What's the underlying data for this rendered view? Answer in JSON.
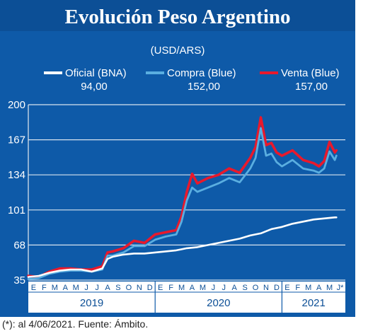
{
  "chart_data": {
    "type": "line",
    "title": "Evolución Peso Argentino",
    "subtitle": "(USD/ARS)",
    "footnote": "(*): al 4/06/2021. Fuente: Ámbito.",
    "ylim": [
      35,
      200
    ],
    "y_ticks": [
      35,
      68,
      101,
      134,
      167,
      200
    ],
    "y_tick_labels": [
      "35",
      "68",
      "101",
      "134",
      "167",
      "200"
    ],
    "month_labels": [
      "E",
      "F",
      "M",
      "A",
      "M",
      "J",
      "J",
      "A",
      "S",
      "O",
      "N",
      "D",
      "E",
      "F",
      "M",
      "A",
      "M",
      "J",
      "J",
      "A",
      "S",
      "O",
      "N",
      "D",
      "E",
      "F",
      "M",
      "A",
      "M",
      "J*"
    ],
    "years": [
      {
        "label": "2019",
        "start_month": 0,
        "end_month": 12
      },
      {
        "label": "2020",
        "start_month": 12,
        "end_month": 24
      },
      {
        "label": "2021",
        "start_month": 24,
        "end_month": 30
      }
    ],
    "grid": true,
    "legend_position": "top",
    "x_unit": "months since January 2019",
    "series": [
      {
        "name": "Oficial (BNA)",
        "last_value": "94,00",
        "color": "#ffffff",
        "x": [
          0,
          1,
          2,
          3,
          4,
          5,
          6,
          7,
          7.5,
          8,
          9,
          10,
          11,
          12,
          13,
          14,
          15,
          16,
          17,
          18,
          19,
          20,
          21,
          22,
          23,
          24,
          25,
          26,
          27,
          28,
          29,
          29.15
        ],
        "y": [
          38,
          39,
          42,
          44,
          45,
          45,
          43,
          46,
          55,
          57,
          59,
          60,
          60,
          61,
          62,
          63,
          65,
          66,
          68,
          70,
          72,
          74,
          77,
          79,
          83,
          85,
          88,
          90,
          92,
          93,
          94,
          94
        ]
      },
      {
        "name": "Compra (Blue)",
        "last_value": "152,00",
        "color": "#5aaee0",
        "x": [
          0,
          1,
          2,
          3,
          4,
          5,
          6,
          7,
          7.5,
          8,
          9,
          10,
          11,
          12,
          13,
          14,
          14.5,
          15,
          15.5,
          16,
          17,
          18,
          19,
          20,
          21,
          21.5,
          22,
          22.5,
          23,
          23.5,
          24,
          25,
          26,
          27,
          27.5,
          28,
          28.5,
          29,
          29.15
        ],
        "y": [
          36,
          37,
          41,
          43,
          44,
          44,
          43,
          45,
          58,
          58,
          61,
          67,
          67,
          73,
          76,
          78,
          90,
          110,
          122,
          118,
          122,
          126,
          131,
          127,
          140,
          150,
          178,
          152,
          154,
          146,
          142,
          148,
          140,
          138,
          136,
          140,
          156,
          148,
          152
        ]
      },
      {
        "name": "Venta (Blue)",
        "last_value": "157,00",
        "color": "#e8192c",
        "x": [
          0,
          1,
          2,
          3,
          4,
          5,
          6,
          7,
          7.5,
          8,
          9,
          10,
          11,
          12,
          13,
          14,
          14.5,
          15,
          15.5,
          16,
          17,
          18,
          19,
          20,
          21,
          21.5,
          22,
          22.5,
          23,
          23.5,
          24,
          25,
          26,
          27,
          27.5,
          28,
          28.5,
          29,
          29.15
        ],
        "y": [
          39,
          38,
          43,
          46,
          46,
          45,
          45,
          48,
          61,
          62,
          65,
          72,
          70,
          78,
          80,
          82,
          95,
          118,
          135,
          126,
          131,
          134,
          140,
          136,
          150,
          160,
          188,
          162,
          164,
          155,
          152,
          157,
          148,
          145,
          142,
          147,
          165,
          155,
          157
        ]
      }
    ]
  },
  "colors": {
    "panel_background": "#0e5aa8",
    "title_band": "#0c4f96",
    "gridline": "#d7e3ef",
    "axis": "#e4e9ef"
  }
}
